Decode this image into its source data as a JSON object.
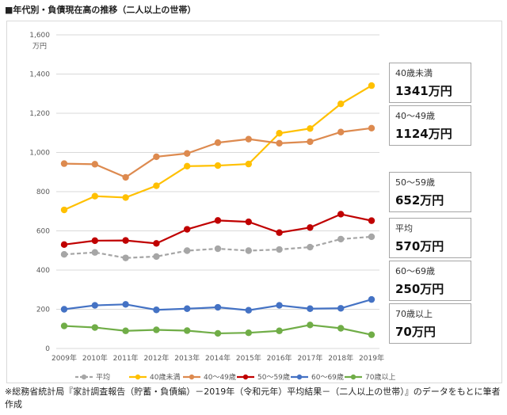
{
  "title": "■年代別・負債現在高の推移（二人以上の世帯）",
  "footnote": "※総務省統計局『家計調査報告（貯蓄・負債編）－2019年（令和元年）平均結果－（二人以上の世帯）』のデータをもとに筆者作成",
  "chart_data": {
    "type": "line",
    "title": "",
    "xlabel": "",
    "ylabel": "万円",
    "ylim": [
      0,
      1600
    ],
    "yticks": [
      0,
      200,
      400,
      600,
      800,
      1000,
      1200,
      1400,
      1600
    ],
    "ytick_labels": [
      "0",
      "200",
      "400",
      "600",
      "800",
      "1,000",
      "1,200",
      "1,400",
      "1,600"
    ],
    "grid": true,
    "legend_position": "bottom",
    "categories": [
      "2009年",
      "2010年",
      "2011年",
      "2012年",
      "2013年",
      "2014年",
      "2015年",
      "2016年",
      "2017年",
      "2018年",
      "2019年"
    ],
    "series": [
      {
        "name": "平均",
        "color": "#a6a6a6",
        "dashed": true,
        "values": [
          480,
          490,
          462,
          469,
          499,
          509,
          499,
          505,
          517,
          558,
          570
        ]
      },
      {
        "name": "40歳未満",
        "color": "#ffc000",
        "dashed": false,
        "values": [
          707,
          777,
          770,
          830,
          930,
          933,
          941,
          1098,
          1122,
          1248,
          1341
        ]
      },
      {
        "name": "40～49歳",
        "color": "#dd8a4f",
        "dashed": false,
        "values": [
          943,
          940,
          873,
          978,
          995,
          1050,
          1068,
          1047,
          1055,
          1104,
          1124
        ]
      },
      {
        "name": "50～59歳",
        "color": "#c00000",
        "dashed": false,
        "values": [
          530,
          550,
          551,
          536,
          608,
          653,
          646,
          591,
          617,
          685,
          652
        ]
      },
      {
        "name": "60～69歳",
        "color": "#4472c4",
        "dashed": false,
        "values": [
          200,
          220,
          225,
          197,
          203,
          210,
          195,
          220,
          203,
          205,
          250
        ]
      },
      {
        "name": "70歳以上",
        "color": "#70ad47",
        "dashed": false,
        "values": [
          115,
          107,
          90,
          95,
          91,
          77,
          80,
          90,
          120,
          103,
          70
        ]
      }
    ],
    "annotations": [
      {
        "label": "40歳未満",
        "value": "1341万円"
      },
      {
        "label": "40～49歳",
        "value": "1124万円"
      },
      {
        "label": "50～59歳",
        "value": "652万円"
      },
      {
        "label": "平均",
        "value": "570万円"
      },
      {
        "label": "60～69歳",
        "value": "250万円"
      },
      {
        "label": "70歳以上",
        "value": "70万円"
      }
    ]
  }
}
